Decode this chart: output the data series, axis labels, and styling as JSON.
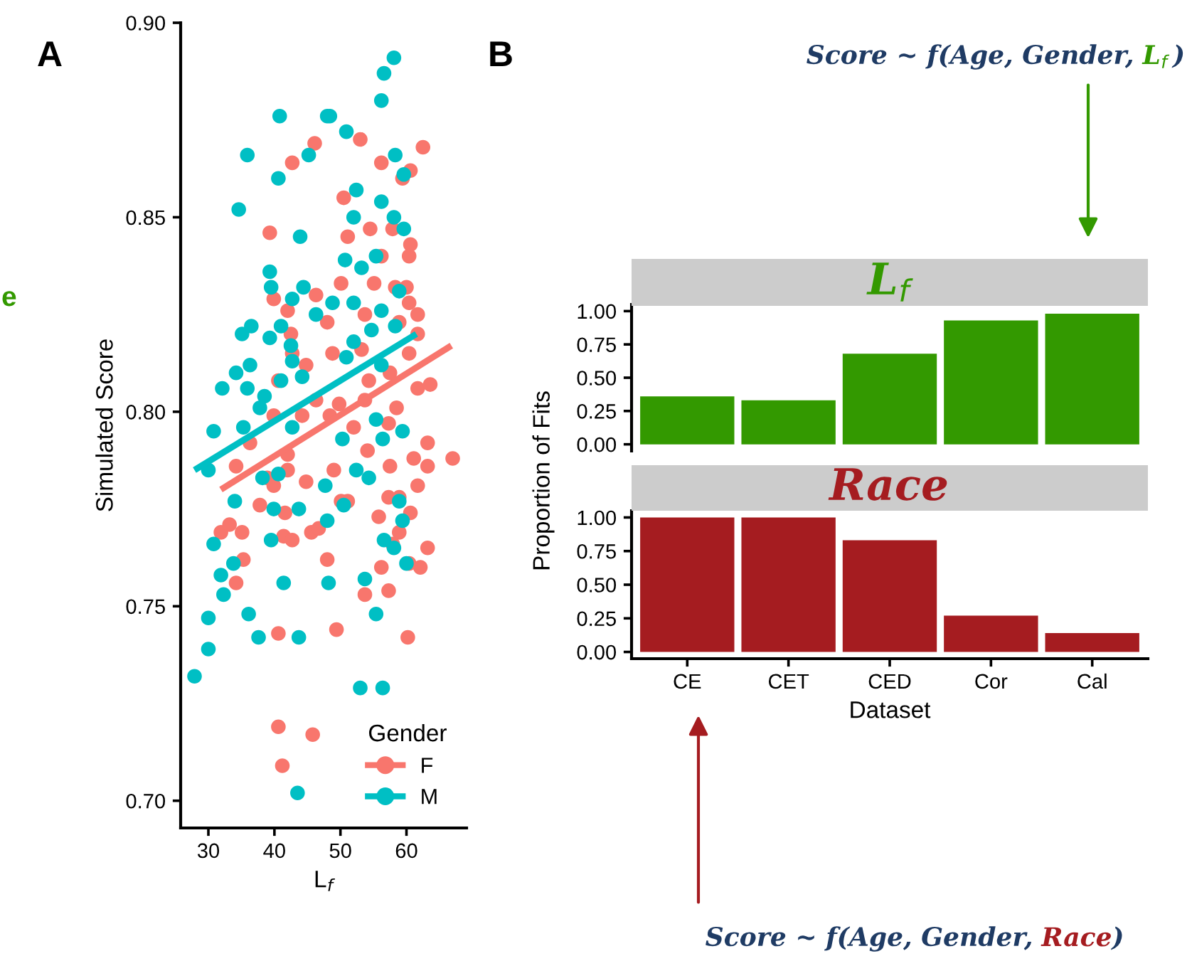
{
  "chart_data": [
    {
      "type": "scatter",
      "xlabel": "L$_{f}$",
      "ylabel": "Simulated Score",
      "legend_title": "Gender",
      "legend": "bottom right",
      "grid": false,
      "marker": "circle",
      "annotations": [
        "A",
        "e"
      ],
      "xlim": [
        25.8,
        69.1
      ],
      "xticks": [
        30,
        40,
        50,
        60
      ],
      "ylim": [
        0.693,
        0.9
      ],
      "yticks": [
        {
          "value": 0.7,
          "label": "0.70"
        },
        {
          "value": 0.75,
          "label": "0.75"
        },
        {
          "value": 0.8,
          "label": "0.80"
        },
        {
          "value": 0.85,
          "label": "0.85"
        },
        {
          "value": 0.9,
          "label": "0.90"
        }
      ],
      "series": [
        {
          "name": "F",
          "color": "#f8766d",
          "x": [
            46.1,
            53.0,
            42.7,
            62.5,
            56.2,
            60.6,
            59.4,
            50.5,
            39.3,
            51.1,
            54.5,
            57.9,
            60.6,
            60.4,
            56.2,
            50.1,
            39.9,
            46.3,
            55.1,
            58.3,
            60.0,
            42.0,
            53.7,
            60.4,
            61.7,
            48.0,
            58.9,
            42.5,
            61.7,
            48.8,
            42.7,
            53.2,
            60.4,
            40.6,
            44.8,
            54.3,
            57.5,
            61.7,
            63.6,
            46.3,
            49.8,
            53.7,
            58.5,
            39.9,
            44.2,
            48.4,
            52.0,
            57.3,
            63.2,
            67.0,
            36.3,
            42.0,
            34.2,
            38.9,
            39.9,
            42.0,
            44.8,
            49.0,
            50.1,
            51.1,
            54.1,
            57.5,
            61.1,
            63.2,
            61.7,
            57.3,
            58.9,
            37.8,
            41.6,
            55.8,
            60.6,
            31.9,
            33.2,
            35.1,
            41.4,
            42.7,
            45.6,
            46.7,
            58.9,
            57.9,
            63.2,
            35.3,
            48.0,
            60.4,
            62.1,
            56.2,
            34.2,
            53.7,
            57.3,
            40.6,
            49.4,
            60.2,
            40.6,
            45.8,
            41.2
          ],
          "values": [
            0.869,
            0.87,
            0.864,
            0.868,
            0.864,
            0.862,
            0.86,
            0.855,
            0.846,
            0.845,
            0.847,
            0.847,
            0.843,
            0.84,
            0.84,
            0.833,
            0.829,
            0.83,
            0.833,
            0.832,
            0.832,
            0.826,
            0.825,
            0.828,
            0.825,
            0.823,
            0.823,
            0.82,
            0.82,
            0.815,
            0.815,
            0.816,
            0.815,
            0.808,
            0.812,
            0.808,
            0.81,
            0.806,
            0.807,
            0.803,
            0.802,
            0.803,
            0.801,
            0.799,
            0.799,
            0.799,
            0.796,
            0.797,
            0.792,
            0.788,
            0.792,
            0.789,
            0.786,
            0.783,
            0.781,
            0.785,
            0.782,
            0.785,
            0.777,
            0.777,
            0.79,
            0.786,
            0.788,
            0.786,
            0.781,
            0.778,
            0.778,
            0.776,
            0.774,
            0.773,
            0.774,
            0.769,
            0.771,
            0.769,
            0.768,
            0.767,
            0.769,
            0.77,
            0.769,
            0.766,
            0.765,
            0.762,
            0.762,
            0.761,
            0.76,
            0.76,
            0.756,
            0.753,
            0.754,
            0.743,
            0.744,
            0.742,
            0.719,
            0.717,
            0.709
          ]
        },
        {
          "name": "M",
          "color": "#00bfc4",
          "x": [
            58.1,
            56.6,
            56.2,
            40.8,
            48.0,
            48.4,
            50.9,
            35.9,
            45.2,
            40.6,
            52.4,
            58.3,
            59.6,
            34.6,
            52.0,
            56.2,
            58.1,
            43.9,
            59.6,
            39.3,
            50.7,
            53.2,
            55.4,
            39.5,
            44.4,
            42.7,
            48.8,
            52.0,
            58.9,
            46.3,
            56.2,
            35.1,
            36.5,
            39.3,
            41.0,
            52.0,
            54.7,
            58.3,
            42.5,
            36.3,
            34.2,
            42.7,
            50.9,
            56.2,
            32.1,
            35.9,
            41.0,
            44.2,
            38.5,
            37.8,
            30.8,
            35.3,
            42.7,
            55.4,
            59.4,
            50.3,
            30.0,
            34.0,
            38.2,
            40.6,
            39.9,
            43.7,
            47.7,
            48.0,
            50.5,
            52.4,
            54.3,
            56.4,
            58.9,
            59.4,
            56.6,
            58.1,
            60.0,
            30.8,
            39.5,
            31.9,
            33.8,
            32.3,
            41.4,
            48.2,
            53.7,
            30.0,
            36.1,
            37.6,
            43.7,
            55.4,
            30.0,
            27.9,
            53.0,
            56.4,
            43.5
          ],
          "values": [
            0.891,
            0.887,
            0.88,
            0.876,
            0.876,
            0.876,
            0.872,
            0.866,
            0.866,
            0.86,
            0.857,
            0.866,
            0.861,
            0.852,
            0.85,
            0.854,
            0.85,
            0.845,
            0.847,
            0.836,
            0.839,
            0.837,
            0.84,
            0.832,
            0.832,
            0.829,
            0.828,
            0.828,
            0.831,
            0.825,
            0.826,
            0.82,
            0.822,
            0.819,
            0.822,
            0.818,
            0.821,
            0.822,
            0.817,
            0.812,
            0.81,
            0.813,
            0.814,
            0.812,
            0.806,
            0.806,
            0.808,
            0.809,
            0.804,
            0.801,
            0.795,
            0.796,
            0.796,
            0.798,
            0.795,
            0.793,
            0.785,
            0.777,
            0.783,
            0.784,
            0.775,
            0.775,
            0.781,
            0.772,
            0.776,
            0.785,
            0.783,
            0.793,
            0.777,
            0.772,
            0.767,
            0.765,
            0.761,
            0.766,
            0.767,
            0.758,
            0.761,
            0.753,
            0.756,
            0.756,
            0.757,
            0.747,
            0.748,
            0.742,
            0.742,
            0.748,
            0.739,
            0.732,
            0.729,
            0.729,
            0.702
          ]
        },
        {
          "type": "line",
          "marker": "none",
          "color": "#f8766d",
          "x": [
            31.9,
            66.8
          ],
          "values": [
            0.78,
            0.817
          ]
        },
        {
          "type": "line",
          "marker": "none",
          "color": "#00bfc4",
          "x": [
            27.9,
            61.5
          ],
          "values": [
            0.785,
            0.82
          ]
        }
      ]
    },
    {
      "type": "bar",
      "title": "L$_{f}$",
      "ylabel": "Proportion of Fits",
      "tick_labels": "y",
      "grid": false,
      "annotations": [
        "B",
        "Score ~ f(Age, Gender, L$_{f}$)"
      ],
      "categories": [
        null,
        null,
        null,
        null,
        null
      ],
      "ylim": [
        -0.05,
        1.05
      ],
      "yticks": [
        {
          "value": 0,
          "label": "0.00"
        },
        {
          "value": 0.25,
          "label": "0.25"
        },
        {
          "value": 0.5,
          "label": "0.50"
        },
        {
          "value": 0.75,
          "label": "0.75"
        },
        {
          "value": 1,
          "label": "1.00"
        }
      ],
      "series": [
        {
          "color": "#339900",
          "values": [
            0.36,
            0.33,
            0.68,
            0.93,
            0.98
          ]
        }
      ]
    },
    {
      "type": "bar",
      "title": "Race",
      "xlabel": "Dataset",
      "grid": false,
      "annotations": [
        "Score ~ f(Age, Gender, Race)"
      ],
      "categories": [
        "CE",
        "CET",
        "CED",
        "Cor",
        "Cal"
      ],
      "ylim": [
        -0.05,
        1.05
      ],
      "yticks": [
        {
          "value": 0,
          "label": "0.00"
        },
        {
          "value": 0.25,
          "label": "0.25"
        },
        {
          "value": 0.5,
          "label": "0.50"
        },
        {
          "value": 0.75,
          "label": "0.75"
        },
        {
          "value": 1,
          "label": "1.00"
        }
      ],
      "series": [
        {
          "color": "#a51c20",
          "values": [
            1.0,
            1.0,
            0.83,
            0.27,
            0.14
          ]
        }
      ]
    }
  ]
}
